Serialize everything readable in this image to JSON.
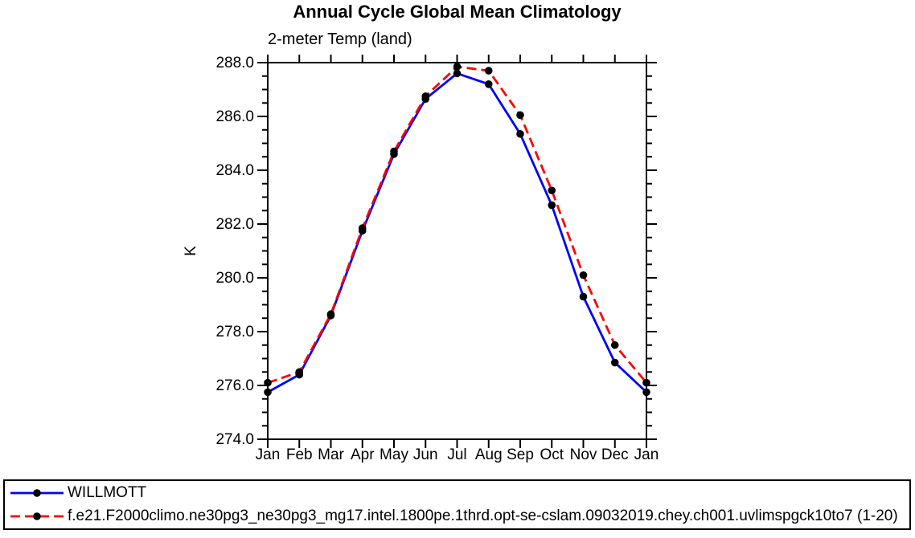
{
  "page": {
    "background": "#ffffff"
  },
  "chart_data": {
    "type": "line",
    "title": "Annual Cycle Global Mean Climatology",
    "subtitle": "2-meter Temp (land)",
    "xlabel": "",
    "ylabel": "K",
    "ylim": [
      274.0,
      288.0
    ],
    "ytick_major_interval": 2.0,
    "ytick_minor_interval": 0.5,
    "grid": false,
    "legend_position": "bottom-left-outside",
    "categories": [
      "Jan",
      "Feb",
      "Mar",
      "Apr",
      "May",
      "Jun",
      "Jul",
      "Aug",
      "Sep",
      "Oct",
      "Nov",
      "Dec",
      "Jan"
    ],
    "marker": "filled-circle",
    "marker_color": "#000000",
    "series": [
      {
        "name": "WILLMOTT",
        "color": "#0000ff",
        "line_style": "solid",
        "values": [
          275.75,
          276.4,
          278.6,
          281.75,
          284.6,
          286.65,
          287.6,
          287.2,
          285.35,
          282.7,
          279.3,
          276.85,
          275.75
        ]
      },
      {
        "name": "f.e21.F2000climo.ne30pg3_ne30pg3_mg17.intel.1800pe.1thrd.opt-se-cslam.09032019.chey.ch001.uvlimspgck10to7 (1-20)",
        "color": "#ff0000",
        "line_style": "dashed",
        "values": [
          276.1,
          276.5,
          278.65,
          281.85,
          284.7,
          286.75,
          287.85,
          287.7,
          286.05,
          283.25,
          280.1,
          277.5,
          276.1
        ]
      }
    ]
  }
}
